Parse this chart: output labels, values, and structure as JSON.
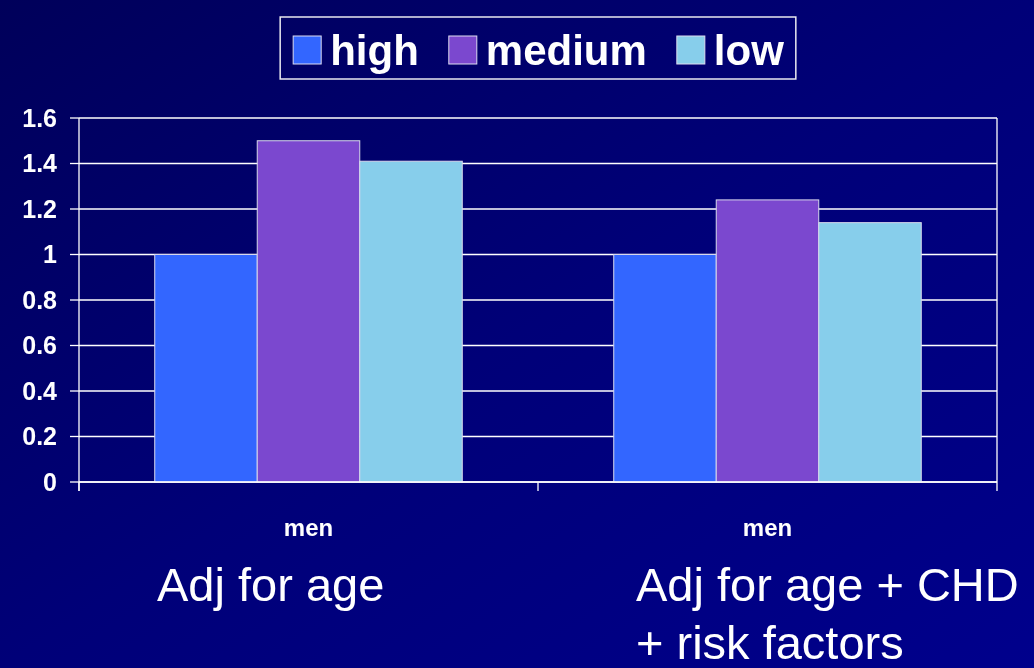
{
  "chart_data": {
    "type": "bar",
    "categories": [
      "men",
      "men"
    ],
    "series": [
      {
        "name": "high",
        "color": "#3366ff",
        "values": [
          1.0,
          1.0
        ]
      },
      {
        "name": "medium",
        "color": "#7b48cf",
        "values": [
          1.5,
          1.24
        ]
      },
      {
        "name": "low",
        "color": "#87ceeb",
        "values": [
          1.41,
          1.14
        ]
      }
    ],
    "ylim": [
      0,
      1.6
    ],
    "yticks": [
      0,
      0.2,
      0.4,
      0.6,
      0.8,
      1,
      1.2,
      1.4,
      1.6
    ],
    "grid": "y",
    "legend": "top",
    "annotations": [
      "Adj for age",
      "Adj for age + CHD + risk factors"
    ]
  }
}
